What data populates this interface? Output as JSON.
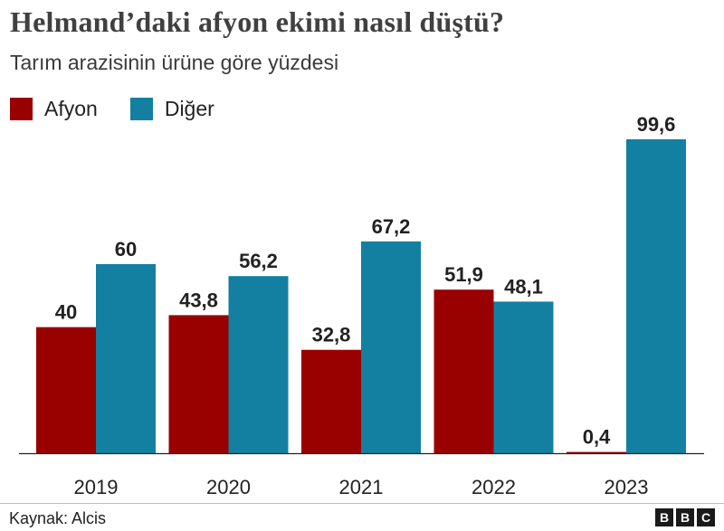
{
  "chart_data": {
    "type": "bar",
    "title": "Helmand’daki afyon ekimi nasıl düştü?",
    "subtitle": "Tarım arazisinin ürüne göre yüzdesi",
    "categories": [
      "2019",
      "2020",
      "2021",
      "2022",
      "2023"
    ],
    "series": [
      {
        "name": "Afyon",
        "color": "#990000",
        "values": [
          40,
          43.8,
          32.8,
          51.9,
          0.4
        ],
        "labels": [
          "40",
          "43,8",
          "32,8",
          "51,9",
          "0,4"
        ]
      },
      {
        "name": "Diğer",
        "color": "#1380A1",
        "values": [
          60,
          56.2,
          67.2,
          48.1,
          99.6
        ],
        "labels": [
          "60",
          "56,2",
          "67,2",
          "48,1",
          "99,6"
        ]
      }
    ],
    "ylim": [
      0,
      100
    ],
    "grid": false,
    "legend": "top-left",
    "xlabel": "",
    "ylabel": ""
  },
  "footer": {
    "source": "Kaynak: Alcis",
    "logo_letters": [
      "B",
      "B",
      "C"
    ]
  }
}
